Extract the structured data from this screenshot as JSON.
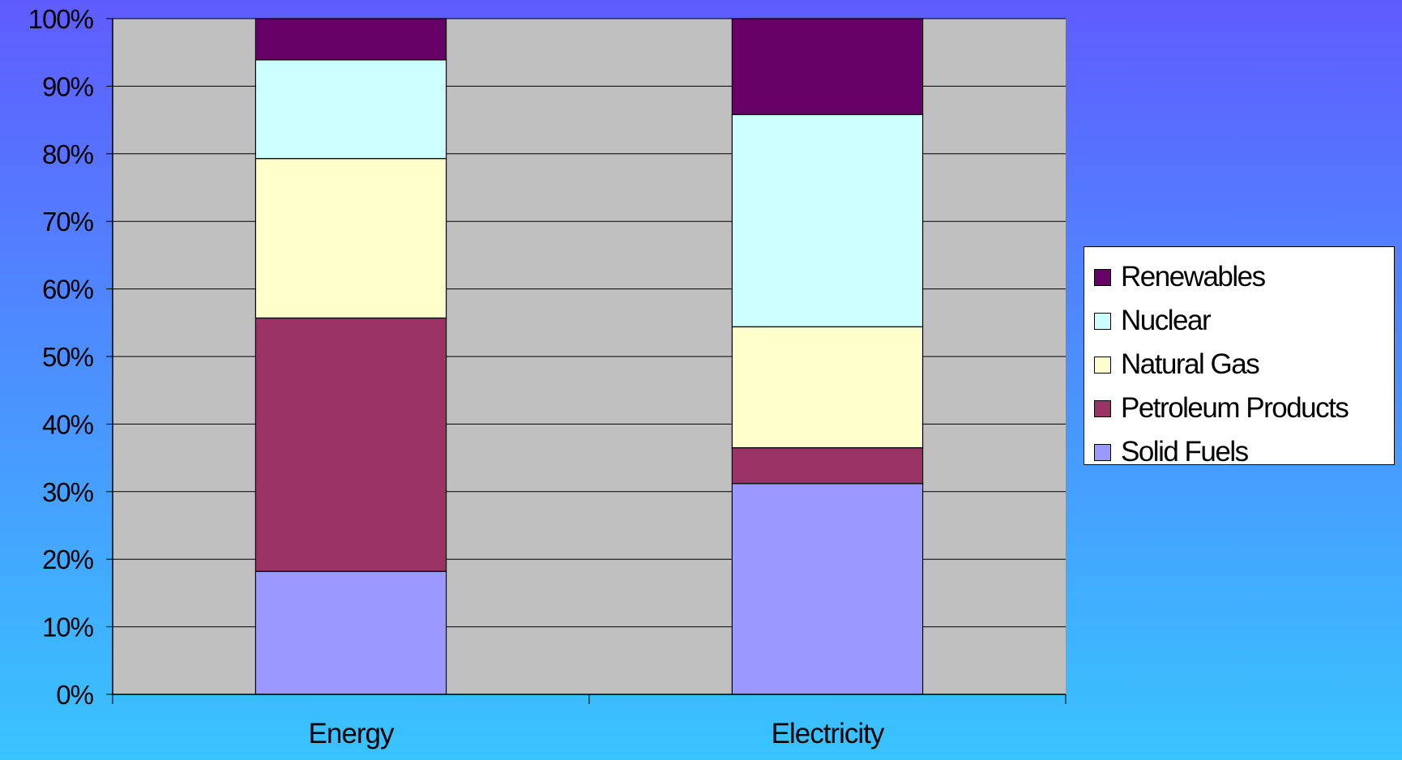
{
  "chart_data": {
    "type": "bar",
    "stacked": true,
    "percent": true,
    "categories": [
      "Energy",
      "Electricity"
    ],
    "series": [
      {
        "name": "Solid Fuels",
        "color": "#9999ff",
        "values": [
          18.2,
          31.2
        ]
      },
      {
        "name": "Petroleum Products",
        "color": "#993366",
        "values": [
          37.5,
          5.3
        ]
      },
      {
        "name": "Natural Gas",
        "color": "#ffffcc",
        "values": [
          23.6,
          17.9
        ]
      },
      {
        "name": "Nuclear",
        "color": "#ccffff",
        "values": [
          14.6,
          31.4
        ]
      },
      {
        "name": "Renewables",
        "color": "#660066",
        "values": [
          6.1,
          14.2
        ]
      }
    ],
    "yticks": [
      "0%",
      "10%",
      "20%",
      "30%",
      "40%",
      "50%",
      "60%",
      "70%",
      "80%",
      "90%",
      "100%"
    ],
    "ylim": [
      0,
      100
    ],
    "grid": true,
    "legend_position": "right",
    "plot_background": "#c0c0c0"
  }
}
